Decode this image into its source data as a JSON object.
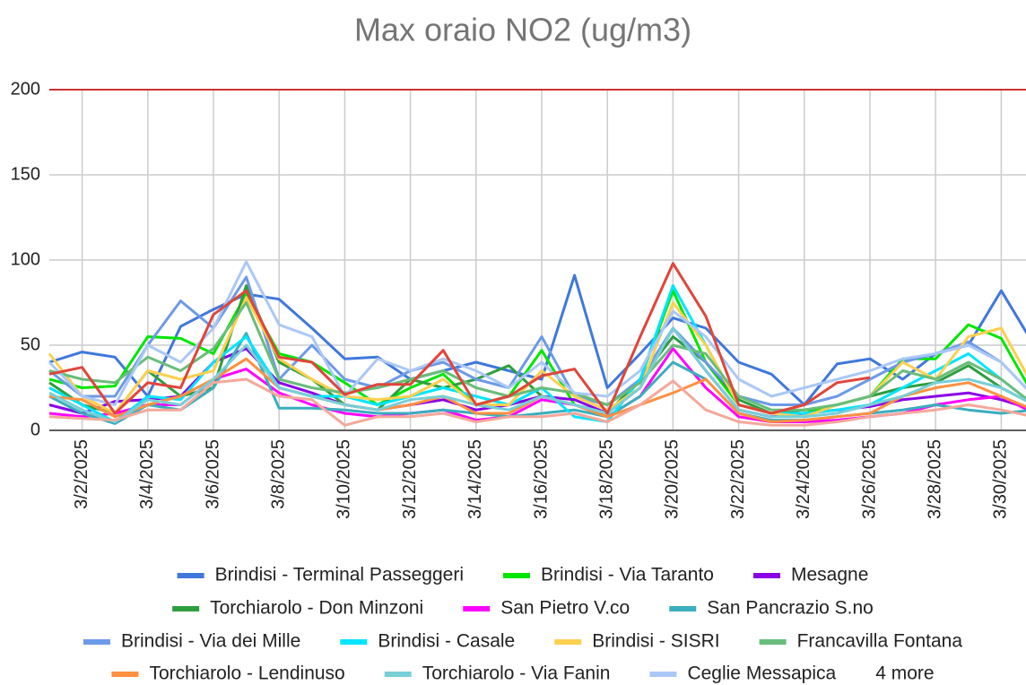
{
  "chart_data": {
    "type": "line",
    "title": "Max oraio NO2 (ug/m3)",
    "categories": [
      null,
      "3/2/2025",
      null,
      "3/4/2025",
      null,
      "3/6/2025",
      null,
      "3/8/2025",
      null,
      "3/10/2025",
      null,
      "3/12/2025",
      null,
      "3/14/2025",
      null,
      "3/16/2025",
      null,
      "3/18/2025",
      null,
      "3/20/2025",
      null,
      "3/22/2025",
      null,
      "3/24/2025",
      null,
      "3/26/2025",
      null,
      "3/28/2025",
      null,
      "3/30/2025",
      null
    ],
    "ylim": [
      0,
      200
    ],
    "yticks": [
      0,
      50,
      100,
      150,
      200
    ],
    "grid": true,
    "reference_line": {
      "value": 200,
      "color": "#cc3333"
    },
    "legend_more": "4 more",
    "series": [
      {
        "name": "Brindisi - Terminal Passeggeri",
        "color": "#3f78dc",
        "values": [
          40,
          46,
          43,
          20,
          61,
          71,
          80,
          77,
          60,
          42,
          43,
          30,
          35,
          40,
          35,
          30,
          91,
          25,
          45,
          66,
          60,
          40,
          33,
          15,
          39,
          42,
          30,
          45,
          50,
          82,
          50
        ]
      },
      {
        "name": "Brindisi - Via Taranto",
        "color": "#00e600",
        "values": [
          30,
          25,
          26,
          55,
          54,
          45,
          80,
          45,
          40,
          28,
          15,
          25,
          33,
          15,
          20,
          47,
          15,
          10,
          30,
          82,
          40,
          15,
          10,
          10,
          15,
          20,
          42,
          42,
          62,
          54,
          20
        ]
      },
      {
        "name": "Mesagne",
        "color": "#8a00e6",
        "values": [
          15,
          10,
          17,
          18,
          20,
          40,
          48,
          28,
          22,
          15,
          12,
          15,
          18,
          12,
          15,
          20,
          18,
          10,
          25,
          60,
          35,
          12,
          8,
          10,
          12,
          14,
          18,
          20,
          22,
          18,
          12
        ]
      },
      {
        "name": "Torchiarolo - Don Minzoni",
        "color": "#2e9e3e",
        "values": [
          28,
          15,
          10,
          35,
          20,
          25,
          85,
          40,
          30,
          15,
          12,
          30,
          25,
          30,
          38,
          20,
          15,
          10,
          30,
          55,
          40,
          18,
          10,
          12,
          15,
          20,
          25,
          28,
          38,
          25,
          15
        ]
      },
      {
        "name": "San Pietro V.co",
        "color": "#ff00ff",
        "values": [
          10,
          8,
          10,
          15,
          15,
          30,
          36,
          22,
          15,
          10,
          8,
          10,
          12,
          6,
          8,
          18,
          15,
          8,
          20,
          48,
          25,
          8,
          5,
          5,
          6,
          8,
          10,
          15,
          18,
          20,
          10
        ]
      },
      {
        "name": "San Pancrazio S.no",
        "color": "#3aaebd",
        "values": [
          20,
          10,
          4,
          15,
          12,
          25,
          57,
          13,
          13,
          12,
          10,
          10,
          12,
          10,
          8,
          10,
          12,
          8,
          20,
          40,
          30,
          10,
          6,
          6,
          8,
          10,
          12,
          15,
          12,
          10,
          12
        ]
      },
      {
        "name": "Brindisi - Via dei Mille",
        "color": "#6c9ae8",
        "values": [
          35,
          20,
          20,
          50,
          76,
          60,
          90,
          30,
          50,
          30,
          25,
          35,
          40,
          30,
          25,
          55,
          20,
          15,
          30,
          60,
          40,
          20,
          15,
          15,
          20,
          30,
          40,
          45,
          52,
          40,
          20
        ]
      },
      {
        "name": "Brindisi - Casale",
        "color": "#00e5ff",
        "values": [
          25,
          15,
          5,
          20,
          18,
          40,
          55,
          25,
          20,
          20,
          15,
          20,
          25,
          20,
          15,
          25,
          8,
          5,
          30,
          85,
          50,
          15,
          10,
          10,
          12,
          15,
          25,
          35,
          45,
          30,
          15
        ]
      },
      {
        "name": "Brindisi - SISRI",
        "color": "#fcd04f",
        "values": [
          45,
          20,
          10,
          35,
          30,
          35,
          78,
          42,
          30,
          20,
          18,
          20,
          30,
          15,
          15,
          35,
          20,
          12,
          25,
          75,
          50,
          15,
          10,
          8,
          15,
          20,
          40,
          30,
          55,
          60,
          25
        ]
      },
      {
        "name": "Francavilla Fontana",
        "color": "#69bd7a",
        "values": [
          35,
          30,
          28,
          43,
          35,
          48,
          75,
          30,
          25,
          22,
          25,
          30,
          35,
          25,
          20,
          25,
          22,
          15,
          28,
          50,
          45,
          20,
          12,
          12,
          15,
          20,
          35,
          30,
          40,
          30,
          15
        ]
      },
      {
        "name": "Torchiarolo - Lendinuso",
        "color": "#ff9040",
        "values": [
          20,
          18,
          8,
          15,
          20,
          30,
          42,
          25,
          20,
          15,
          12,
          15,
          20,
          10,
          10,
          20,
          15,
          8,
          15,
          22,
          30,
          10,
          5,
          6,
          8,
          10,
          20,
          25,
          28,
          20,
          12
        ]
      },
      {
        "name": "Torchiarolo - Via Fanin",
        "color": "#78cfd8",
        "values": [
          22,
          12,
          5,
          18,
          15,
          30,
          50,
          25,
          20,
          15,
          12,
          18,
          20,
          15,
          12,
          20,
          15,
          10,
          25,
          60,
          35,
          12,
          8,
          8,
          10,
          15,
          20,
          28,
          30,
          25,
          15
        ]
      },
      {
        "name": "Ceglie Messapica",
        "color": "#aac8f5",
        "values": [
          40,
          20,
          15,
          50,
          40,
          60,
          99,
          62,
          55,
          20,
          42,
          35,
          42,
          35,
          25,
          40,
          22,
          20,
          35,
          70,
          55,
          30,
          20,
          25,
          30,
          35,
          42,
          45,
          50,
          40,
          20
        ]
      },
      {
        "color": "#f4a89a",
        "values": [
          8,
          7,
          6,
          12,
          12,
          28,
          30,
          20,
          18,
          3,
          8,
          8,
          10,
          5,
          8,
          8,
          10,
          5,
          15,
          29,
          12,
          5,
          3,
          3,
          5,
          8,
          10,
          12,
          15,
          12,
          8
        ]
      },
      {
        "color": "#e0453a",
        "values": [
          33,
          37,
          10,
          28,
          25,
          68,
          82,
          43,
          40,
          21,
          27,
          27,
          47,
          15,
          20,
          32,
          36,
          10,
          55,
          98,
          67,
          15,
          10,
          15,
          28,
          31,
          null,
          null,
          null,
          null,
          null
        ]
      }
    ]
  }
}
